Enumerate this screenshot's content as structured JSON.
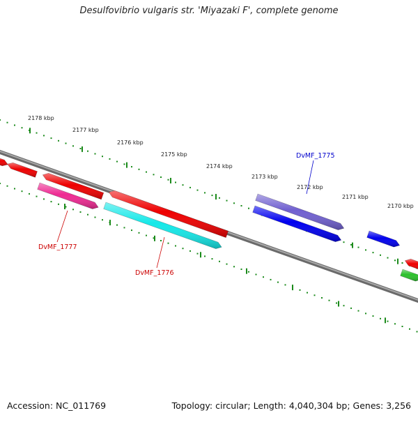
{
  "title": "Desulfovibrio vulgaris str. 'Miyazaki F', complete genome",
  "footer": {
    "accession": "Accession: NC_011769",
    "summary": "Topology: circular; Length: 4,040,304 bp; Genes: 3,256"
  },
  "ticks": [
    {
      "label": "2178 kbp"
    },
    {
      "label": "2177 kbp"
    },
    {
      "label": "2176 kbp"
    },
    {
      "label": "2175 kbp"
    },
    {
      "label": "2174 kbp"
    },
    {
      "label": "2173 kbp"
    },
    {
      "label": "2172 kbp"
    },
    {
      "label": "2171 kbp"
    },
    {
      "label": "2170 kbp"
    }
  ],
  "gene_labels": [
    {
      "text": "DvMF_1775",
      "color": "#0000cc"
    },
    {
      "text": "DvMF_1777",
      "color": "#cc0000"
    },
    {
      "text": "DvMF_1776",
      "color": "#cc0000"
    }
  ],
  "colors": {
    "backbone": "#808080",
    "dots": "#1a8a1a",
    "red": "#ee0000",
    "pink": "#ee2a92",
    "cyan": "#15e8e8",
    "blue": "#0000ee",
    "violet": "#7060d0",
    "green": "#2cc02c"
  }
}
